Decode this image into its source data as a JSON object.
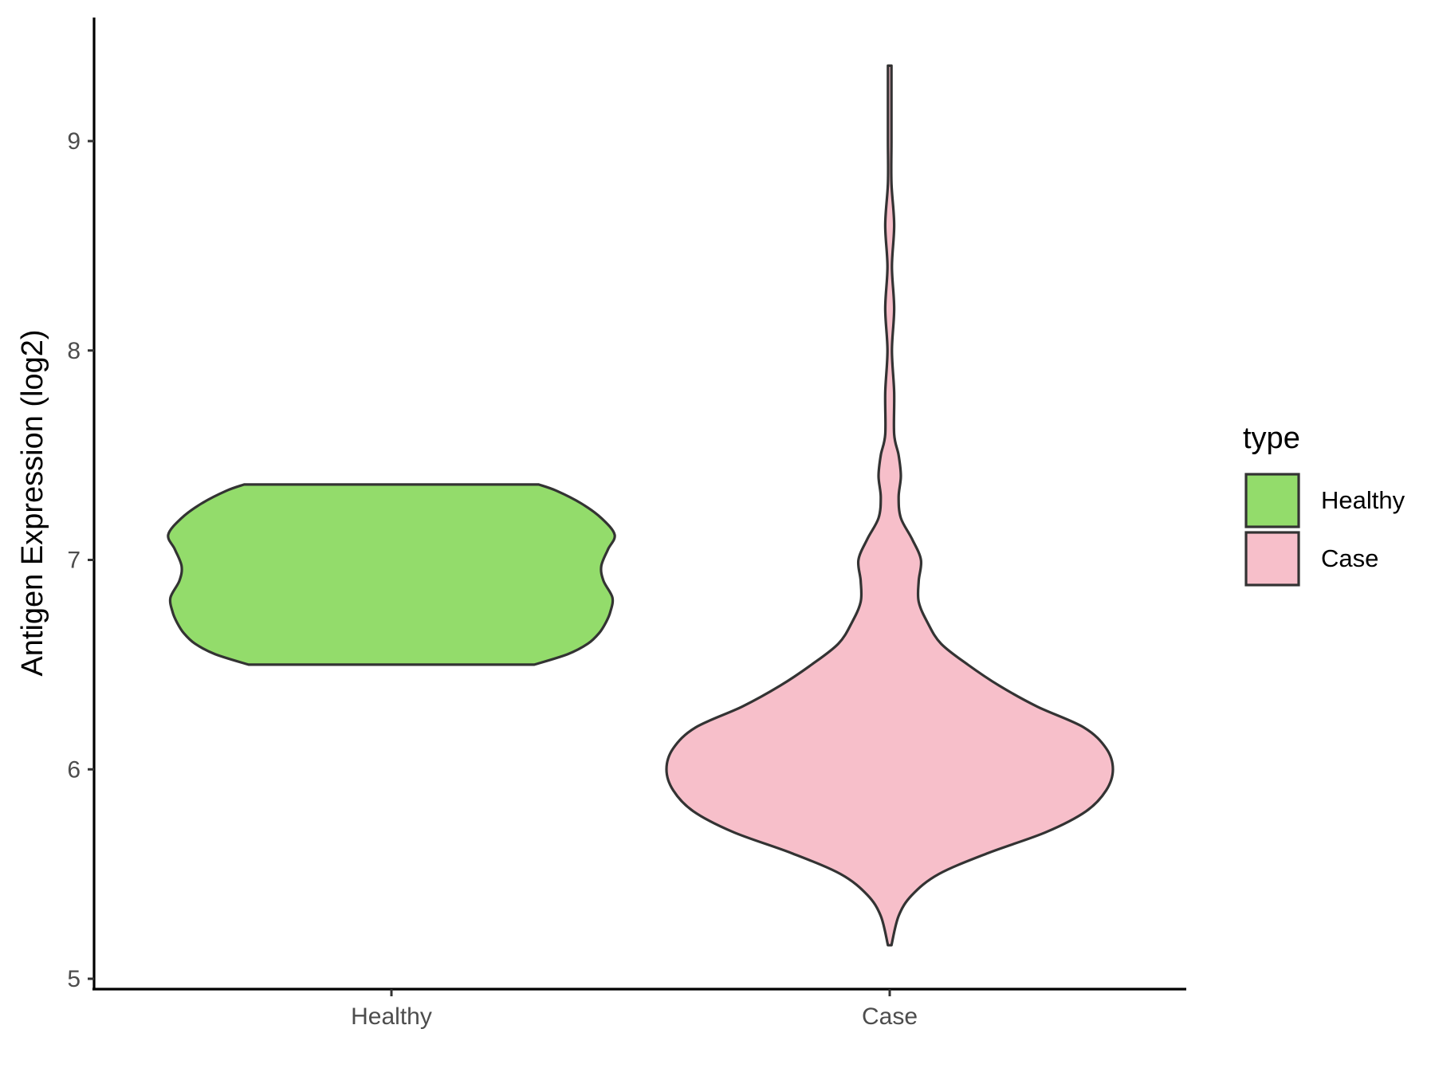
{
  "chart_data": {
    "type": "violin",
    "title": "",
    "xlabel": "",
    "ylabel": "Antigen Expression (log2)",
    "ylim": [
      4.95,
      9.6
    ],
    "yticks": [
      5,
      6,
      7,
      8,
      9
    ],
    "categories": [
      "Healthy",
      "Case"
    ],
    "legend": {
      "title": "type",
      "placement": "right",
      "entries": [
        {
          "label": "Healthy",
          "color": "#93dc6b"
        },
        {
          "label": "Case",
          "color": "#f7bfca"
        }
      ]
    },
    "series": [
      {
        "category": "Healthy",
        "color": "#93dc6b",
        "min": 6.5,
        "max": 7.36,
        "density_profile": [
          [
            6.5,
            0.64
          ],
          [
            6.55,
            0.79
          ],
          [
            6.6,
            0.88
          ],
          [
            6.65,
            0.93
          ],
          [
            6.7,
            0.96
          ],
          [
            6.75,
            0.98
          ],
          [
            6.82,
            0.99
          ],
          [
            6.9,
            0.95
          ],
          [
            6.97,
            0.94
          ],
          [
            7.05,
            0.97
          ],
          [
            7.12,
            1.0
          ],
          [
            7.2,
            0.94
          ],
          [
            7.27,
            0.85
          ],
          [
            7.33,
            0.74
          ],
          [
            7.36,
            0.66
          ]
        ]
      },
      {
        "category": "Case",
        "color": "#f7bfca",
        "min": 5.16,
        "max": 9.36,
        "density_profile": [
          [
            5.16,
            0.0
          ],
          [
            5.3,
            0.04
          ],
          [
            5.4,
            0.1
          ],
          [
            5.5,
            0.22
          ],
          [
            5.6,
            0.44
          ],
          [
            5.7,
            0.7
          ],
          [
            5.8,
            0.88
          ],
          [
            5.9,
            0.97
          ],
          [
            6.0,
            1.0
          ],
          [
            6.1,
            0.97
          ],
          [
            6.2,
            0.87
          ],
          [
            6.3,
            0.66
          ],
          [
            6.4,
            0.49
          ],
          [
            6.5,
            0.35
          ],
          [
            6.6,
            0.23
          ],
          [
            6.7,
            0.17
          ],
          [
            6.8,
            0.13
          ],
          [
            6.9,
            0.13
          ],
          [
            7.0,
            0.14
          ],
          [
            7.1,
            0.1
          ],
          [
            7.2,
            0.05
          ],
          [
            7.3,
            0.04
          ],
          [
            7.4,
            0.05
          ],
          [
            7.5,
            0.04
          ],
          [
            7.6,
            0.02
          ],
          [
            7.8,
            0.02
          ],
          [
            8.0,
            0.01
          ],
          [
            8.2,
            0.02
          ],
          [
            8.4,
            0.01
          ],
          [
            8.6,
            0.02
          ],
          [
            8.8,
            0.005
          ],
          [
            9.0,
            0.005
          ],
          [
            9.2,
            0.003
          ],
          [
            9.36,
            0.0
          ]
        ]
      }
    ],
    "grid": false
  }
}
